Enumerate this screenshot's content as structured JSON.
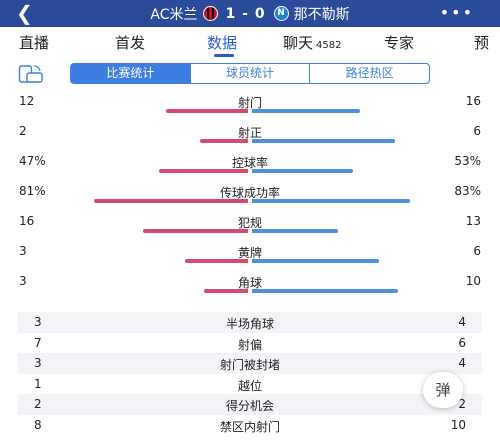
{
  "header": {
    "home_team": "AC米兰",
    "score": "1 - 0",
    "away_team": "那不勒斯"
  },
  "tabs": [
    {
      "label": "直播"
    },
    {
      "label": "首发"
    },
    {
      "label": "数据"
    },
    {
      "label": "聊天",
      "count": "4582"
    },
    {
      "label": "专家"
    },
    {
      "label": "预"
    }
  ],
  "active_tab": "数据",
  "subtabs": [
    "比赛统计",
    "球员统计",
    "路径热区"
  ],
  "active_subtab": "比赛统计",
  "bar_stats": [
    {
      "label": "射门",
      "home": "12",
      "away": "16",
      "home_frac": 0.43,
      "away_frac": 0.57
    },
    {
      "label": "射正",
      "home": "2",
      "away": "6",
      "home_frac": 0.25,
      "away_frac": 0.75
    },
    {
      "label": "控球率",
      "home": "47%",
      "away": "53%",
      "home_frac": 0.47,
      "away_frac": 0.53
    },
    {
      "label": "传球成功率",
      "home": "81%",
      "away": "83%",
      "home_frac": 0.81,
      "away_frac": 0.83
    },
    {
      "label": "犯规",
      "home": "16",
      "away": "13",
      "home_frac": 0.55,
      "away_frac": 0.45
    },
    {
      "label": "黄牌",
      "home": "3",
      "away": "6",
      "home_frac": 0.33,
      "away_frac": 0.67
    },
    {
      "label": "角球",
      "home": "3",
      "away": "10",
      "home_frac": 0.23,
      "away_frac": 0.77
    }
  ],
  "table_stats": [
    {
      "label": "半场角球",
      "home": "3",
      "away": "4"
    },
    {
      "label": "射偏",
      "home": "7",
      "away": "6"
    },
    {
      "label": "射门被封堵",
      "home": "3",
      "away": "4"
    },
    {
      "label": "越位",
      "home": "1",
      "away": ""
    },
    {
      "label": "得分机会",
      "home": "2",
      "away": "2"
    },
    {
      "label": "禁区内射门",
      "home": "8",
      "away": "10"
    }
  ],
  "danmu_label": "弹",
  "colors": {
    "header_bg": "#2a4a9a",
    "accent": "#2a5bd7",
    "home_bar": "#d64b73",
    "away_bar": "#4d8fe0"
  }
}
